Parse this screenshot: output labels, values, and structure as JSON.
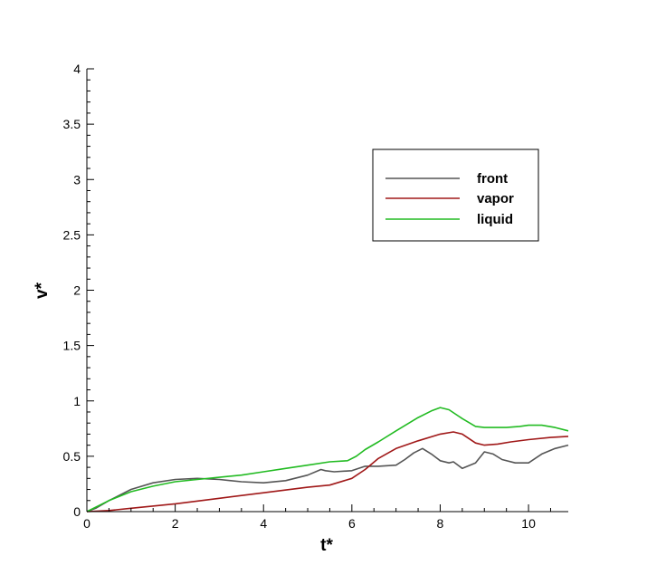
{
  "chart_data": {
    "type": "line",
    "title": "",
    "xlabel": "t*",
    "ylabel": "v*",
    "xlim": [
      0,
      10.9
    ],
    "ylim": [
      0,
      4
    ],
    "grid": false,
    "legend_position": "top-right",
    "x_ticks": [
      0,
      2,
      4,
      6,
      8,
      10
    ],
    "x_tick_labels": [
      "0",
      "2",
      "4",
      "6",
      "8",
      "10"
    ],
    "y_ticks": [
      0,
      0.5,
      1,
      1.5,
      2,
      2.5,
      3,
      3.5,
      4
    ],
    "y_tick_labels": [
      "0",
      "0.5",
      "1",
      "1.5",
      "2",
      "2.5",
      "3",
      "3.5",
      "4"
    ],
    "series": [
      {
        "name": "front",
        "color": "#555555",
        "x": [
          0,
          0.2,
          0.5,
          1.0,
          1.5,
          2.0,
          2.5,
          3.0,
          3.5,
          4.0,
          4.5,
          5.0,
          5.3,
          5.4,
          5.6,
          6.0,
          6.3,
          6.6,
          7.0,
          7.2,
          7.4,
          7.6,
          7.8,
          8.0,
          8.2,
          8.3,
          8.5,
          8.8,
          9.0,
          9.2,
          9.4,
          9.7,
          10.0,
          10.3,
          10.6,
          10.9
        ],
        "y": [
          0,
          0.03,
          0.1,
          0.2,
          0.26,
          0.29,
          0.3,
          0.29,
          0.27,
          0.26,
          0.28,
          0.33,
          0.38,
          0.37,
          0.36,
          0.37,
          0.41,
          0.41,
          0.42,
          0.47,
          0.53,
          0.57,
          0.52,
          0.46,
          0.44,
          0.45,
          0.39,
          0.44,
          0.54,
          0.52,
          0.47,
          0.44,
          0.44,
          0.52,
          0.57,
          0.6
        ]
      },
      {
        "name": "vapor",
        "color": "#a01818",
        "x": [
          0,
          0.5,
          1.0,
          2.0,
          3.0,
          4.0,
          5.0,
          5.5,
          6.0,
          6.3,
          6.6,
          7.0,
          7.5,
          8.0,
          8.3,
          8.5,
          8.8,
          9.0,
          9.3,
          9.6,
          10.0,
          10.5,
          10.9
        ],
        "y": [
          0,
          0.01,
          0.03,
          0.07,
          0.12,
          0.17,
          0.22,
          0.24,
          0.3,
          0.38,
          0.48,
          0.57,
          0.64,
          0.7,
          0.72,
          0.7,
          0.62,
          0.6,
          0.61,
          0.63,
          0.65,
          0.67,
          0.68
        ]
      },
      {
        "name": "liquid",
        "color": "#22bb22",
        "x": [
          0,
          0.2,
          0.5,
          1.0,
          1.5,
          2.0,
          2.5,
          3.0,
          3.5,
          4.0,
          4.5,
          5.0,
          5.5,
          5.9,
          6.1,
          6.3,
          6.6,
          7.0,
          7.5,
          7.8,
          8.0,
          8.2,
          8.5,
          8.8,
          9.0,
          9.5,
          9.8,
          10.0,
          10.3,
          10.6,
          10.9
        ],
        "y": [
          0,
          0.04,
          0.1,
          0.18,
          0.23,
          0.27,
          0.29,
          0.31,
          0.33,
          0.36,
          0.39,
          0.42,
          0.45,
          0.46,
          0.5,
          0.56,
          0.63,
          0.73,
          0.85,
          0.91,
          0.94,
          0.92,
          0.84,
          0.77,
          0.76,
          0.76,
          0.77,
          0.78,
          0.78,
          0.76,
          0.73
        ]
      }
    ]
  }
}
